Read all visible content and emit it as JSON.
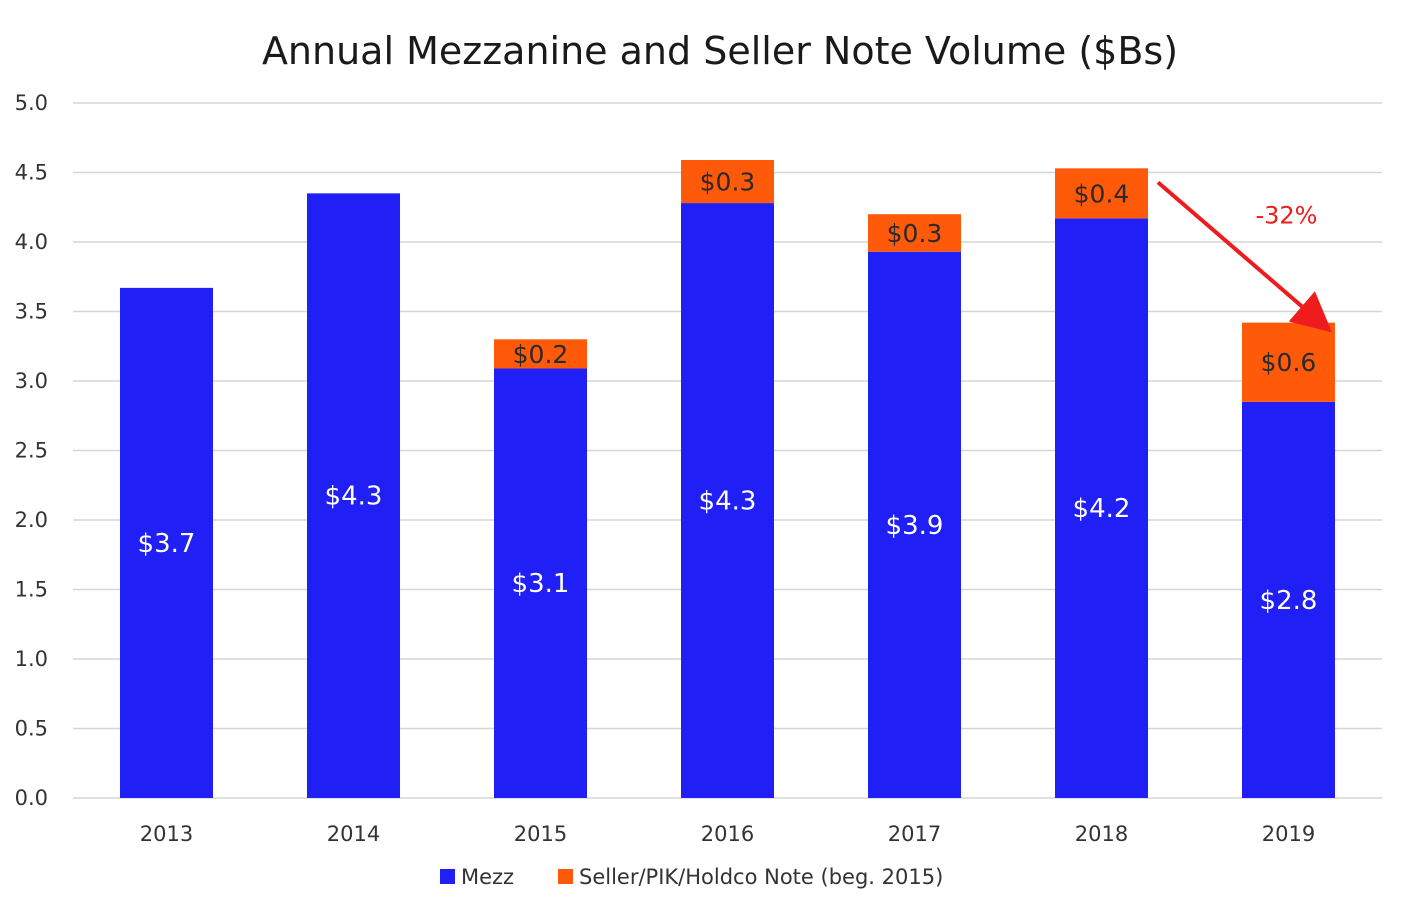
{
  "chart_data": {
    "type": "bar",
    "stacked": true,
    "title": "Annual Mezzanine and Seller Note Volume ($Bs)",
    "xlabel": "",
    "ylabel": "",
    "ylim": [
      0,
      5
    ],
    "yticks": [
      "0.0",
      "0.5",
      "1.0",
      "1.5",
      "2.0",
      "2.5",
      "3.0",
      "3.5",
      "4.0",
      "4.5",
      "5.0"
    ],
    "grid": true,
    "legend_position": "bottom",
    "categories": [
      "2013",
      "2014",
      "2015",
      "2016",
      "2017",
      "2018",
      "2019"
    ],
    "series": [
      {
        "name": "Mezz",
        "color": "#1f1ff6",
        "values": [
          3.67,
          4.35,
          3.09,
          4.28,
          3.93,
          4.17,
          2.85
        ],
        "labels": [
          "$3.7",
          "$4.3",
          "$3.1",
          "$4.3",
          "$3.9",
          "$4.2",
          "$2.8"
        ]
      },
      {
        "name": "Seller/PIK/Holdco Note (beg. 2015)",
        "color": "#ff5a0a",
        "values": [
          null,
          null,
          0.21,
          0.31,
          0.27,
          0.36,
          0.57
        ],
        "labels": [
          "",
          "",
          "$0.2",
          "$0.3",
          "$0.3",
          "$0.4",
          "$0.6"
        ]
      }
    ],
    "annotations": [
      {
        "text": "-32%",
        "from_category": "2018",
        "to_category": "2019",
        "color": "#ee1c1c"
      }
    ]
  }
}
